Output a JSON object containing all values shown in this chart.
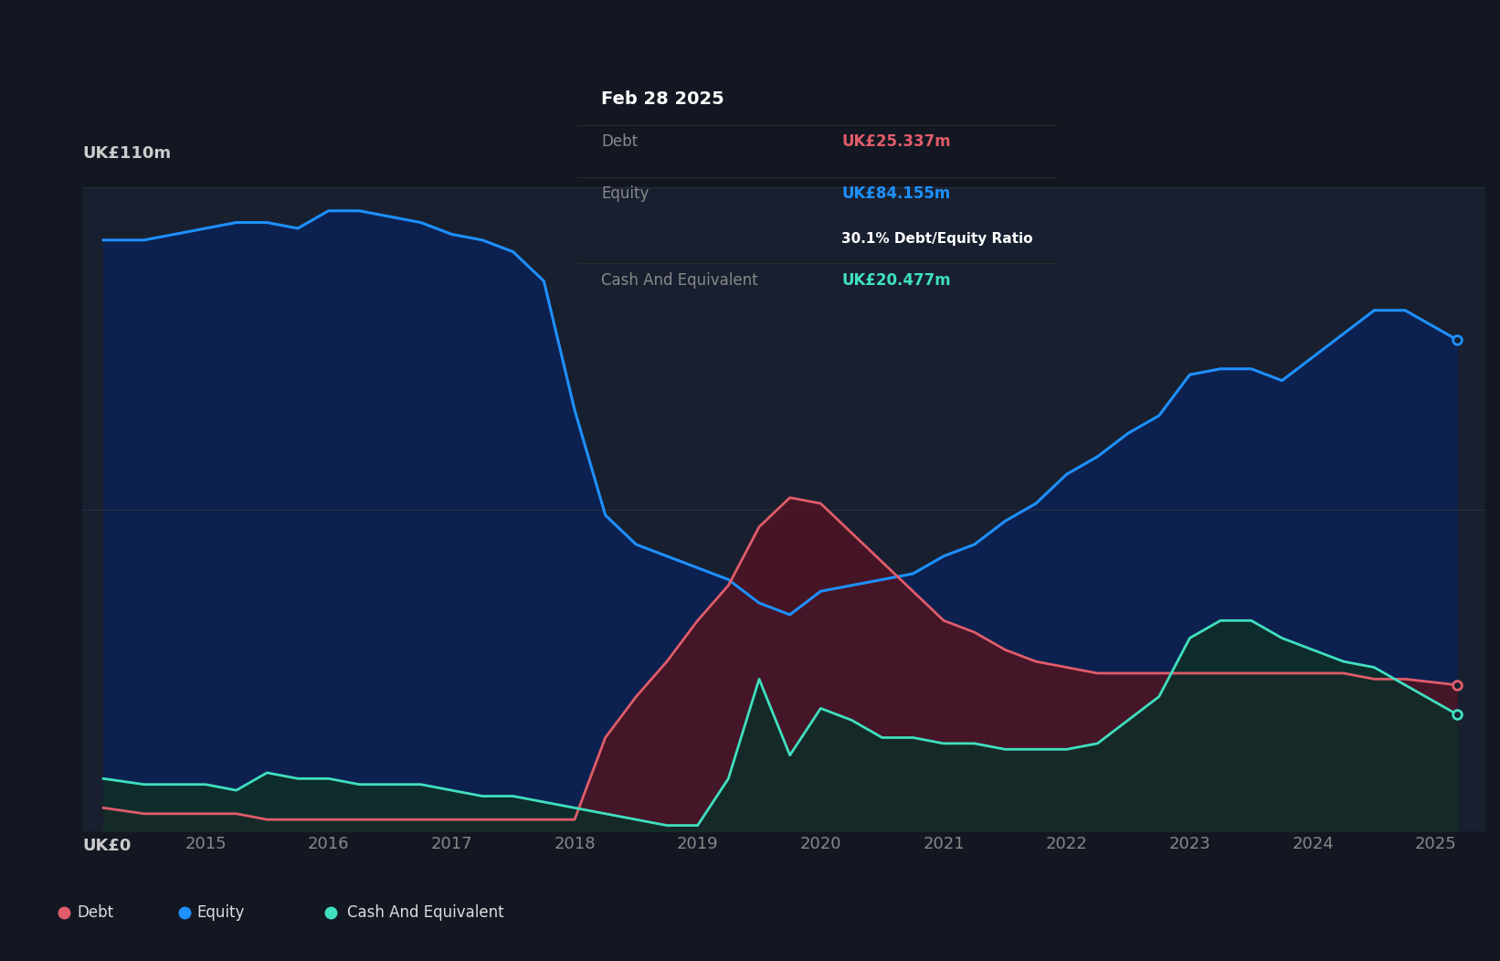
{
  "bg_color": "#131722",
  "plot_bg_color": "#182030",
  "grid_color": "#263040",
  "equity_color": "#1e90ff",
  "equity_fill": "#0d2150",
  "debt_color": "#e05c6a",
  "debt_fill": "#4a1525",
  "cash_color": "#40e0c0",
  "cash_fill": "#0f2e28",
  "ylim": [
    0,
    110
  ],
  "ylabel_text": "UK£110m",
  "ylabel_zero": "UK£0",
  "tooltip": {
    "date": "Feb 28 2025",
    "debt_label": "Debt",
    "debt_value": "UK£25.337m",
    "debt_color": "#e05c6a",
    "equity_label": "Equity",
    "equity_value": "UK£84.155m",
    "equity_color": "#1e90ff",
    "ratio_text": "30.1% Debt/Equity Ratio",
    "ratio_color": "#ffffff",
    "cash_label": "Cash And Equivalent",
    "cash_value": "UK£20.477m",
    "cash_color": "#40e0c0",
    "bg": "#060808",
    "border_color": "#333333",
    "text_color": "#888888",
    "title_color": "#ffffff"
  },
  "legend": {
    "debt_label": "Debt",
    "equity_label": "Equity",
    "cash_label": "Cash And Equivalent",
    "item_bg": "#222e3c",
    "text_color": "#dddddd"
  },
  "years": [
    2014.17,
    2014.5,
    2015.0,
    2015.25,
    2015.5,
    2015.75,
    2016.0,
    2016.25,
    2016.5,
    2016.75,
    2017.0,
    2017.25,
    2017.5,
    2017.75,
    2018.0,
    2018.25,
    2018.5,
    2018.75,
    2019.0,
    2019.25,
    2019.5,
    2019.75,
    2020.0,
    2020.25,
    2020.5,
    2020.75,
    2021.0,
    2021.25,
    2021.5,
    2021.75,
    2022.0,
    2022.25,
    2022.5,
    2022.75,
    2023.0,
    2023.25,
    2023.5,
    2023.75,
    2024.0,
    2024.25,
    2024.5,
    2024.75,
    2025.17
  ],
  "equity": [
    101,
    101,
    103,
    104,
    104,
    103,
    106,
    106,
    105,
    104,
    102,
    101,
    99,
    94,
    72,
    54,
    49,
    47,
    45,
    43,
    39,
    37,
    41,
    42,
    43,
    44,
    47,
    49,
    53,
    56,
    61,
    64,
    68,
    71,
    78,
    79,
    79,
    77,
    81,
    85,
    89,
    89,
    84
  ],
  "debt": [
    4,
    3,
    3,
    3,
    2,
    2,
    2,
    2,
    2,
    2,
    2,
    2,
    2,
    2,
    2,
    16,
    23,
    29,
    36,
    42,
    52,
    57,
    56,
    51,
    46,
    41,
    36,
    34,
    31,
    29,
    28,
    27,
    27,
    27,
    27,
    27,
    27,
    27,
    27,
    27,
    26,
    26,
    25
  ],
  "cash": [
    9,
    8,
    8,
    7,
    10,
    9,
    9,
    8,
    8,
    8,
    7,
    6,
    6,
    5,
    4,
    3,
    2,
    1,
    1,
    9,
    26,
    13,
    21,
    19,
    16,
    16,
    15,
    15,
    14,
    14,
    14,
    15,
    19,
    23,
    33,
    36,
    36,
    33,
    31,
    29,
    28,
    25,
    20
  ]
}
